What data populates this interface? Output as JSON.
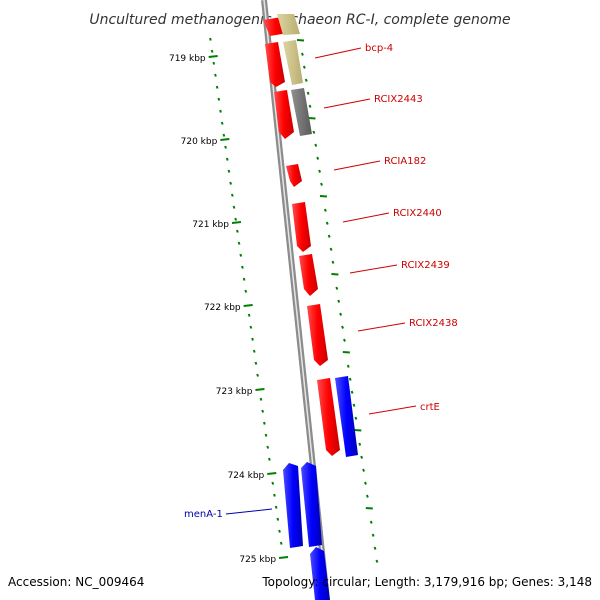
{
  "title": "Uncultured methanogenic archaeon RC-I, complete genome",
  "ruler": {
    "ticks": [
      "719 kbp",
      "720 kbp",
      "721 kbp",
      "722 kbp",
      "723 kbp",
      "724 kbp",
      "725 kbp"
    ]
  },
  "genes": [
    {
      "name": "bcp-4",
      "strand": "forward",
      "color": "#cc0000",
      "label_color": "#cc0000"
    },
    {
      "name": "RCIX2443",
      "strand": "forward",
      "color": "#cc0000",
      "label_color": "#cc0000"
    },
    {
      "name": "RCIA182",
      "strand": "forward",
      "color": "#cc0000",
      "label_color": "#cc0000"
    },
    {
      "name": "RCIX2440",
      "strand": "forward",
      "color": "#cc0000",
      "label_color": "#cc0000"
    },
    {
      "name": "RCIX2439",
      "strand": "forward",
      "color": "#cc0000",
      "label_color": "#cc0000"
    },
    {
      "name": "RCIX2438",
      "strand": "forward",
      "color": "#cc0000",
      "label_color": "#cc0000"
    },
    {
      "name": "crtE",
      "strand": "forward",
      "color": "#cc0000",
      "label_color": "#cc0000"
    },
    {
      "name": "menA-1",
      "strand": "reverse",
      "color": "#0000cc",
      "label_color": "#0000aa"
    }
  ],
  "colors": {
    "forward_cds": "#ff0000",
    "reverse_cds": "#0000ff",
    "other_feature_khaki": "#c8be82",
    "other_feature_gray": "#707070",
    "backbone": "#888888",
    "tick": "#008000"
  },
  "footer": {
    "accession": "Accession: NC_009464",
    "topology": "Topology: circular; Length: 3,179,916 bp; Genes: 3,148"
  }
}
